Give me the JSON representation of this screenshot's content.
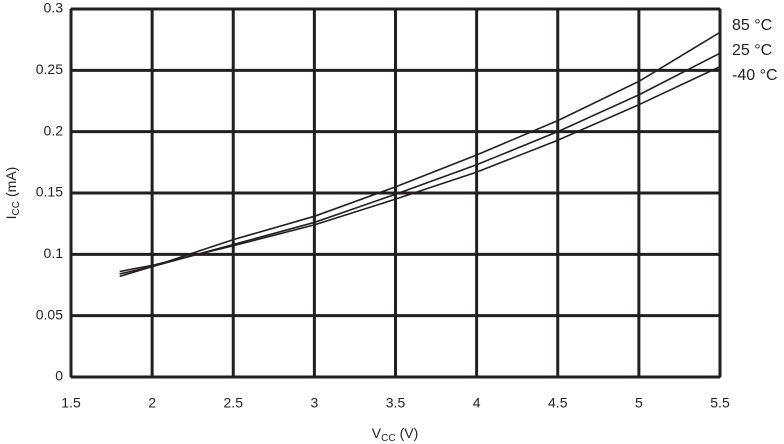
{
  "chart_data": {
    "type": "line",
    "xlabel": {
      "base": "V",
      "sub": "CC",
      "unit": "(V)"
    },
    "ylabel": {
      "base": "I",
      "sub": "CC",
      "unit": "(mA)"
    },
    "x": [
      1.8,
      2,
      2.5,
      3,
      3.5,
      4,
      4.5,
      5,
      5.5
    ],
    "series": [
      {
        "name": "85 °C",
        "color": "#231f20",
        "values": [
          0.082,
          0.09,
          0.112,
          0.131,
          0.155,
          0.181,
          0.209,
          0.241,
          0.281
        ]
      },
      {
        "name": "25 °C",
        "color": "#231f20",
        "values": [
          0.084,
          0.09,
          0.108,
          0.126,
          0.149,
          0.173,
          0.2,
          0.23,
          0.264
        ]
      },
      {
        "name": "-40 °C",
        "color": "#231f20",
        "values": [
          0.086,
          0.091,
          0.107,
          0.124,
          0.145,
          0.167,
          0.193,
          0.222,
          0.253
        ]
      }
    ],
    "xlim": [
      1.5,
      5.5
    ],
    "xticks": [
      1.5,
      2,
      2.5,
      3,
      3.5,
      4,
      4.5,
      5,
      5.5
    ],
    "ylim": [
      0,
      0.3
    ],
    "yticks": [
      0,
      0.05,
      0.1,
      0.15,
      0.2,
      0.25,
      0.3
    ],
    "grid": true,
    "legend": "right"
  }
}
